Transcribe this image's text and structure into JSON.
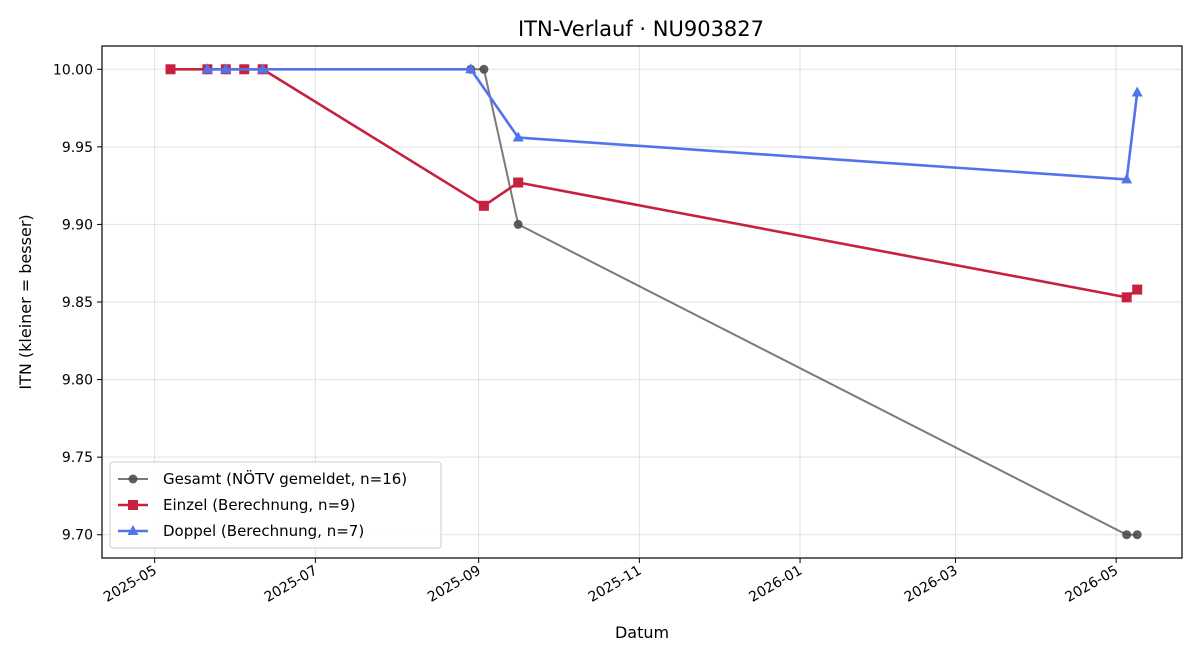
{
  "chart_data": {
    "type": "line",
    "title": "ITN-Verlauf · NU903827",
    "xlabel": "Datum",
    "ylabel": "ITN  (kleiner = besser)",
    "x_type": "date",
    "xlim": [
      "2025-04-11",
      "2026-05-26"
    ],
    "ylim": [
      9.685,
      10.015
    ],
    "x_ticks": [
      "2025-05-01",
      "2025-07-01",
      "2025-09-01",
      "2025-11-01",
      "2026-01-01",
      "2026-03-01",
      "2026-05-01"
    ],
    "x_tick_labels": [
      "2025-05",
      "2025-07",
      "2025-09",
      "2025-11",
      "2026-01",
      "2026-03",
      "2026-05"
    ],
    "y_ticks": [
      9.7,
      9.75,
      9.8,
      9.85,
      9.9,
      9.95,
      10.0
    ],
    "y_tick_labels": [
      "9.70",
      "9.75",
      "9.80",
      "9.85",
      "9.90",
      "9.95",
      "10.00"
    ],
    "grid": true,
    "legend": "lower-left",
    "series": [
      {
        "name": "Gesamt (NÖTV gemeldet, n=16)",
        "color": "#4d4d4d",
        "marker": "circle",
        "x": [
          "2025-08-29",
          "2025-09-03",
          "2025-09-16",
          "2026-05-05",
          "2026-05-09"
        ],
        "y": [
          10.0,
          10.0,
          9.9,
          9.7,
          9.7
        ]
      },
      {
        "name": "Einzel (Berechnung, n=9)",
        "color": "#c8203f",
        "marker": "square",
        "x": [
          "2025-05-07",
          "2025-05-21",
          "2025-05-28",
          "2025-06-04",
          "2025-06-11",
          "2025-09-03",
          "2025-09-16",
          "2026-05-05",
          "2026-05-09"
        ],
        "y": [
          10.0,
          10.0,
          10.0,
          10.0,
          10.0,
          9.912,
          9.927,
          9.853,
          9.858
        ]
      },
      {
        "name": "Doppel (Berechnung, n=7)",
        "color": "#5274ea",
        "marker": "triangle",
        "x": [
          "2025-05-21",
          "2025-05-28",
          "2025-06-11",
          "2025-08-29",
          "2025-09-16",
          "2026-05-05",
          "2026-05-09"
        ],
        "y": [
          10.0,
          10.0,
          10.0,
          10.0,
          9.956,
          9.929,
          9.985
        ]
      }
    ]
  }
}
